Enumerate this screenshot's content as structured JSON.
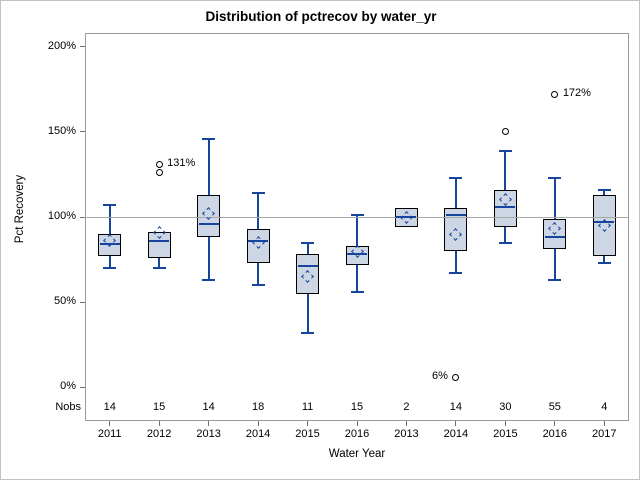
{
  "window_title": "Distribution of pctrecov by water_yr",
  "chart_data": {
    "type": "boxplot",
    "title": "Distribution of pctrecov by water_yr",
    "xlabel": "Water Year",
    "ylabel": "Pct Recovery",
    "nobs_label": "Nobs",
    "ylim": [
      0,
      200
    ],
    "grid": false,
    "reference_line": 100,
    "y_ticks": [
      {
        "value": 0,
        "label": "0%"
      },
      {
        "value": 50,
        "label": "50%"
      },
      {
        "value": 100,
        "label": "100%"
      },
      {
        "value": 150,
        "label": "150%"
      },
      {
        "value": 200,
        "label": "200%"
      }
    ],
    "groups": [
      {
        "year": "2011",
        "nobs": "14",
        "low": 70,
        "q1": 77,
        "median": 84,
        "q3": 90,
        "high": 107,
        "mean": 86,
        "outliers": []
      },
      {
        "year": "2012",
        "nobs": "15",
        "low": 70,
        "q1": 76,
        "median": 86,
        "q3": 91,
        "high": 91,
        "mean": 91,
        "outliers": [
          {
            "value": 126
          },
          {
            "value": 131,
            "label": "131%",
            "side": "right"
          }
        ]
      },
      {
        "year": "2013",
        "nobs": "14",
        "low": 63,
        "q1": 88,
        "median": 96,
        "q3": 113,
        "high": 146,
        "mean": 102,
        "outliers": []
      },
      {
        "year": "2014",
        "nobs": "18",
        "low": 60,
        "q1": 73,
        "median": 86,
        "q3": 93,
        "high": 114,
        "mean": 85,
        "outliers": []
      },
      {
        "year": "2015",
        "nobs": "11",
        "low": 32,
        "q1": 55,
        "median": 71,
        "q3": 78,
        "high": 85,
        "mean": 65,
        "outliers": []
      },
      {
        "year": "2016",
        "nobs": "15",
        "low": 56,
        "q1": 72,
        "median": 78,
        "q3": 83,
        "high": 101,
        "mean": 80,
        "outliers": []
      },
      {
        "year": "2013",
        "nobs": "2",
        "low": 94,
        "q1": 94,
        "median": 100,
        "q3": 105,
        "high": 105,
        "mean": 100,
        "outliers": []
      },
      {
        "year": "2014",
        "nobs": "14",
        "low": 67,
        "q1": 80,
        "median": 101,
        "q3": 105,
        "high": 123,
        "mean": 90,
        "outliers": [
          {
            "value": 6,
            "label": "6%",
            "side": "left"
          }
        ]
      },
      {
        "year": "2015",
        "nobs": "30",
        "low": 85,
        "q1": 94,
        "median": 106,
        "q3": 116,
        "high": 139,
        "mean": 110,
        "outliers": [
          {
            "value": 150
          }
        ]
      },
      {
        "year": "2016",
        "nobs": "55",
        "low": 63,
        "q1": 81,
        "median": 88,
        "q3": 99,
        "high": 123,
        "mean": 93,
        "outliers": [
          {
            "value": 172,
            "label": "172%",
            "side": "right"
          }
        ]
      },
      {
        "year": "2017",
        "nobs": "4",
        "low": 73,
        "q1": 77,
        "median": 97,
        "q3": 113,
        "high": 116,
        "mean": 95,
        "outliers": []
      }
    ],
    "colors": {
      "box_fill": "#ccd6e4",
      "box_border": "#000000",
      "whisker_median_mean": "#17459e",
      "reference_line": "#a8a8a8",
      "frame": "#9a9a9a",
      "tick": "#707070",
      "outlier_border": "#000000"
    }
  }
}
